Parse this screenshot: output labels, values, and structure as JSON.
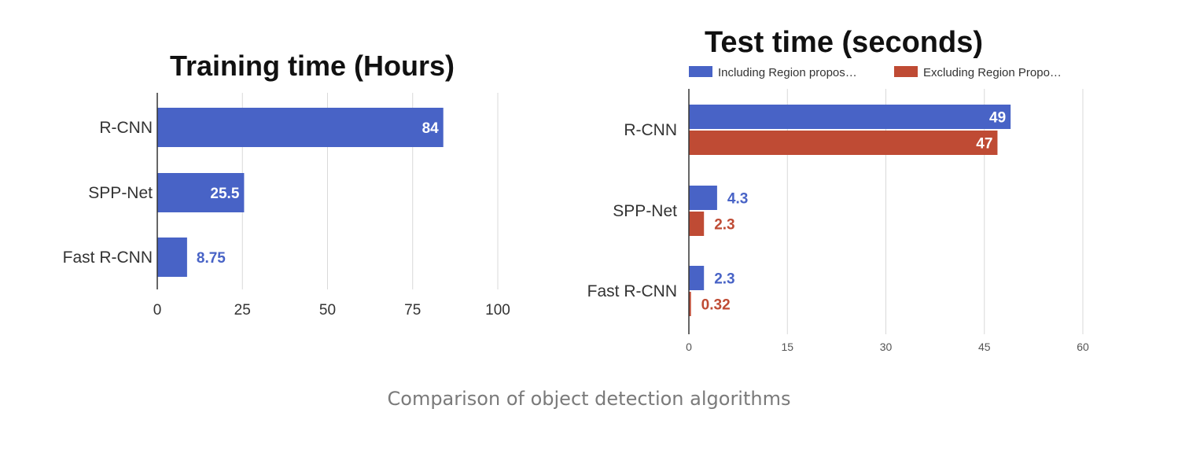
{
  "chart_data": [
    {
      "type": "bar",
      "orientation": "horizontal",
      "title": "Training time (Hours)",
      "categories": [
        "R-CNN",
        "SPP-Net",
        "Fast R-CNN"
      ],
      "series": [
        {
          "values": [
            84,
            25.5,
            8.75
          ],
          "labels": [
            "84",
            "25.5",
            "8.75"
          ],
          "color": "#4863c6"
        }
      ],
      "xlim": [
        0,
        100
      ],
      "ticks": [
        0,
        25,
        50,
        75,
        100
      ],
      "grid": true,
      "legend": "none"
    },
    {
      "type": "bar",
      "orientation": "horizontal",
      "title": "Test time (seconds)",
      "categories": [
        "R-CNN",
        "SPP-Net",
        "Fast R-CNN"
      ],
      "series": [
        {
          "name": "Including Region propos…",
          "values": [
            49,
            4.3,
            2.3
          ],
          "labels": [
            "49",
            "4.3",
            "2.3"
          ],
          "color": "#4863c6"
        },
        {
          "name": "Excluding Region Propo…",
          "values": [
            47,
            2.3,
            0.32
          ],
          "labels": [
            "47",
            "2.3",
            "0.32"
          ],
          "color": "#bf4b34"
        }
      ],
      "xlim": [
        0,
        60
      ],
      "ticks": [
        0,
        15,
        30,
        45,
        60
      ],
      "grid": true,
      "legend": "top"
    }
  ],
  "caption": "Comparison of object detection algorithms"
}
